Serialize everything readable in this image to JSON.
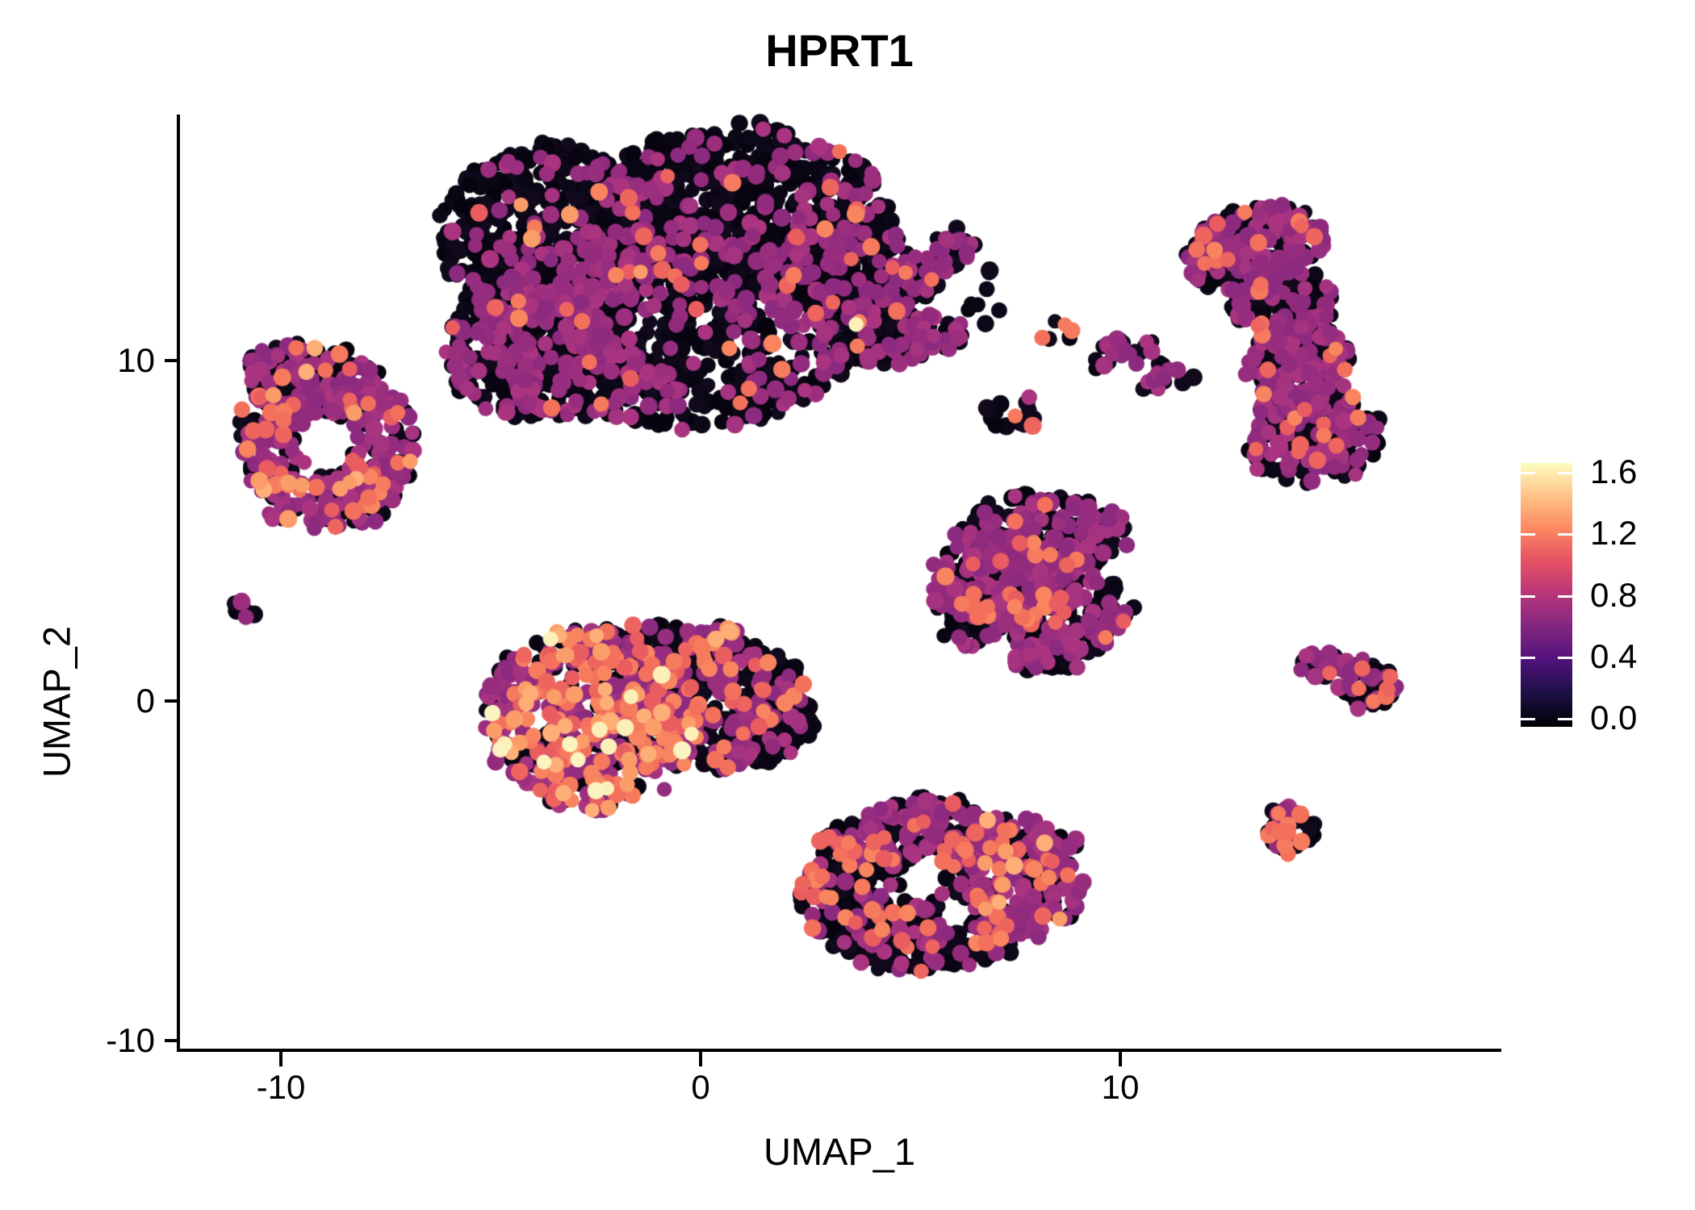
{
  "title": "HPRT1",
  "legend": {
    "tick_labels": [
      "1.6",
      "1.2",
      "0.8",
      "0.4",
      "0.0"
    ],
    "tick_values": [
      1.6,
      1.2,
      0.8,
      0.4,
      0.0
    ]
  },
  "chart_data": {
    "type": "scatter",
    "title": "HPRT1",
    "xlabel": "UMAP_1",
    "ylabel": "UMAP_2",
    "xlim": [
      -12.4,
      19.1
    ],
    "ylim": [
      -10.3,
      17.3
    ],
    "x_ticks": [
      -10,
      0,
      10
    ],
    "y_ticks": [
      -10,
      0,
      10
    ],
    "x_tick_labels": [
      "-10",
      "0",
      "10"
    ],
    "y_tick_labels": [
      "10",
      "0",
      "-10"
    ],
    "grid": false,
    "legend_position": "right",
    "colorbar": {
      "min": 0.0,
      "max": 1.6,
      "tick_values": [
        0.0,
        0.4,
        0.8,
        1.2,
        1.6
      ],
      "palette": "magma",
      "stops": [
        "#000004",
        "#1C1044",
        "#4F127B",
        "#812581",
        "#B5367A",
        "#E55064",
        "#FB8861",
        "#FEC287",
        "#FCFDBF"
      ]
    },
    "point_radius_px": 10,
    "expression_levels": {
      "black": 0.0,
      "purple": 0.75,
      "orange": 1.1,
      "peach": 1.35,
      "cream": 1.55
    },
    "point_colors": {
      "black": [
        "#0a0613",
        "#0d0818",
        "#100a1c",
        "#070410"
      ],
      "purple": [
        "#9c2e7e",
        "#932b7c",
        "#a43380",
        "#8c2a80",
        "#aa3480",
        "#962d7e"
      ],
      "orange": [
        "#f3705c",
        "#ed655e",
        "#f67b5e",
        "#e95d61",
        "#f8855f"
      ],
      "peach": [
        "#fb9d69",
        "#feae77"
      ],
      "cream": [
        "#fcf0b8",
        "#fbf3c0"
      ]
    },
    "clusters": [
      {
        "name": "top-center-main-1",
        "x": -3.42,
        "y": 13.74,
        "rx": 2.88,
        "ry": 2.61,
        "rot": 0,
        "n": 500,
        "mix": {
          "purple": 0.16,
          "orange": 0.015,
          "peach": 0.005
        }
      },
      {
        "name": "top-center-main-2",
        "x": 1.0,
        "y": 14.45,
        "rx": 3.46,
        "ry": 2.49,
        "rot": 0,
        "n": 600,
        "mix": {
          "purple": 0.13,
          "orange": 0.02
        }
      },
      {
        "name": "top-center-main-3",
        "x": -0.54,
        "y": 11.13,
        "rx": 4.42,
        "ry": 3.1,
        "rot": 0,
        "n": 780,
        "mix": {
          "purple": 0.27,
          "orange": 0.025,
          "cream": 0.003
        }
      },
      {
        "name": "top-center-main-4",
        "x": -4.0,
        "y": 10.41,
        "rx": 2.12,
        "ry": 2.14,
        "rot": 0,
        "n": 330,
        "mix": {
          "purple": 0.33,
          "orange": 0.03
        }
      },
      {
        "name": "top-center-main-5",
        "x": 3.4,
        "y": 12.79,
        "rx": 1.63,
        "ry": 1.78,
        "rot": 0,
        "n": 220,
        "mix": {
          "purple": 0.2,
          "orange": 0.02
        }
      },
      {
        "name": "top-center-arm-upper",
        "x": 5.04,
        "y": 12.31,
        "rx": 1.5,
        "ry": 0.55,
        "rot": -35,
        "n": 110,
        "mix": {
          "purple": 0.36,
          "orange": 0.04
        }
      },
      {
        "name": "top-center-arm-lower",
        "x": 4.85,
        "y": 10.65,
        "rx": 1.5,
        "ry": 0.6,
        "rot": -8,
        "n": 110,
        "mix": {
          "purple": 0.36,
          "orange": 0.02
        }
      },
      {
        "name": "top-center-arm-tip",
        "x": 6.1,
        "y": 13.38,
        "rx": 0.5,
        "ry": 0.5,
        "rot": 0,
        "n": 25,
        "mix": {
          "purple": 0.25
        }
      },
      {
        "name": "top-center-scatter",
        "x": 6.77,
        "y": 11.84,
        "rx": 0.55,
        "ry": 0.9,
        "rot": 0,
        "n": 8,
        "mix": {}
      },
      {
        "name": "left-ring-top",
        "x": -9.19,
        "y": 9.47,
        "rx": 1.63,
        "ry": 1.0,
        "rot": 8,
        "n": 150,
        "mix": {
          "purple": 0.49,
          "orange": 0.075,
          "peach": 0.015
        }
      },
      {
        "name": "left-ring-left",
        "x": -10.15,
        "y": 7.69,
        "rx": 0.87,
        "ry": 1.66,
        "rot": 0,
        "n": 110,
        "mix": {
          "purple": 0.49,
          "orange": 0.075,
          "peach": 0.015
        }
      },
      {
        "name": "left-ring-right",
        "x": -7.81,
        "y": 7.62,
        "rx": 1.06,
        "ry": 1.78,
        "rot": 0,
        "n": 150,
        "mix": {
          "purple": 0.49,
          "orange": 0.075,
          "peach": 0.015
        }
      },
      {
        "name": "left-ring-bottom",
        "x": -8.96,
        "y": 5.86,
        "rx": 1.44,
        "ry": 0.83,
        "rot": 0,
        "n": 110,
        "mix": {
          "purple": 0.49,
          "orange": 0.075,
          "peach": 0.015
        }
      },
      {
        "name": "left-ring-inner",
        "x": -9.1,
        "y": 8.28,
        "rx": 0.7,
        "ry": 0.55,
        "rot": 0,
        "n": 20,
        "mix": {
          "purple": 0.5
        }
      },
      {
        "name": "tiny-far-left",
        "x": -10.83,
        "y": 2.78,
        "rx": 0.28,
        "ry": 0.3,
        "rot": 0,
        "n": 6,
        "mix": {
          "purple": 0.5
        }
      },
      {
        "name": "center-left-core",
        "x": -2.65,
        "y": -0.5,
        "rx": 2.6,
        "ry": 2.66,
        "rot": 0,
        "n": 520,
        "mix": {
          "purple": 0.4,
          "orange": 0.24,
          "peach": 0.06,
          "cream": 0.02
        }
      },
      {
        "name": "center-left-right",
        "x": 0.38,
        "y": -0.07,
        "rx": 2.21,
        "ry": 1.9,
        "rot": 0,
        "n": 330,
        "mix": {
          "purple": 0.24,
          "orange": 0.08
        }
      },
      {
        "name": "center-left-tail",
        "x": 1.62,
        "y": -0.85,
        "rx": 1.1,
        "ry": 0.85,
        "rot": -15,
        "n": 90,
        "mix": {
          "purple": 0.2,
          "orange": 0.05
        }
      },
      {
        "name": "center-left-spur",
        "x": 0.48,
        "y": 1.49,
        "rx": 0.42,
        "ry": 0.85,
        "rot": 20,
        "n": 30,
        "mix": {
          "purple": 0.3,
          "orange": 0.3,
          "peach": 0.05
        }
      },
      {
        "name": "center-left-topedge",
        "x": -1.31,
        "y": 1.64,
        "rx": 1.9,
        "ry": 0.6,
        "rot": 0,
        "n": 90,
        "mix": {
          "purple": 0.3,
          "orange": 0.1
        }
      },
      {
        "name": "mid-right-tri-1",
        "x": 8.12,
        "y": 4.91,
        "rx": 2.12,
        "ry": 1.19,
        "rot": 0,
        "n": 200,
        "mix": {
          "purple": 0.46,
          "orange": 0.04
        }
      },
      {
        "name": "mid-right-tri-2",
        "x": 7.25,
        "y": 3.49,
        "rx": 1.73,
        "ry": 1.3,
        "rot": 0,
        "n": 170,
        "mix": {
          "purple": 0.46,
          "orange": 0.04
        }
      },
      {
        "name": "mid-right-tri-3",
        "x": 8.65,
        "y": 2.54,
        "rx": 1.63,
        "ry": 1.19,
        "rot": 0,
        "n": 160,
        "mix": {
          "purple": 0.46,
          "orange": 0.04
        }
      },
      {
        "name": "mid-right-tri-4",
        "x": 6.38,
        "y": 2.63,
        "rx": 0.9,
        "ry": 1.0,
        "rot": 0,
        "n": 70,
        "mix": {
          "purple": 0.46,
          "orange": 0.04
        }
      },
      {
        "name": "mid-right-tri-5",
        "x": 8.31,
        "y": 1.28,
        "rx": 0.85,
        "ry": 0.45,
        "rot": 0,
        "n": 40,
        "mix": {
          "purple": 0.46,
          "orange": 0.04
        }
      },
      {
        "name": "bottom-ridge",
        "x": 5.08,
        "y": -3.87,
        "rx": 1.83,
        "ry": 0.95,
        "rot": -8,
        "n": 170,
        "mix": {
          "purple": 0.45,
          "orange": 0.1
        }
      },
      {
        "name": "bottom-right-lobe",
        "x": 7.38,
        "y": -5.2,
        "rx": 1.83,
        "ry": 1.78,
        "rot": 0,
        "n": 260,
        "mix": {
          "purple": 0.5,
          "orange": 0.12,
          "peach": 0.03
        }
      },
      {
        "name": "bottom-left-lobe",
        "x": 3.65,
        "y": -5.53,
        "rx": 1.35,
        "ry": 1.78,
        "rot": 0,
        "n": 170,
        "mix": {
          "purple": 0.18,
          "orange": 0.14
        }
      },
      {
        "name": "bottom-bottom",
        "x": 5.38,
        "y": -6.95,
        "rx": 2.12,
        "ry": 1.07,
        "rot": 0,
        "n": 180,
        "mix": {
          "purple": 0.22,
          "orange": 0.06
        }
      },
      {
        "name": "right-crescent-1",
        "x": 13.27,
        "y": 13.5,
        "rx": 1.63,
        "ry": 1.07,
        "rot": -12,
        "n": 170,
        "mix": {
          "purple": 0.43,
          "orange": 0.05
        }
      },
      {
        "name": "right-crescent-2",
        "x": 13.85,
        "y": 11.79,
        "rx": 1.35,
        "ry": 1.3,
        "rot": 15,
        "n": 160,
        "mix": {
          "purple": 0.43,
          "orange": 0.05
        }
      },
      {
        "name": "right-crescent-3",
        "x": 14.31,
        "y": 9.89,
        "rx": 1.25,
        "ry": 1.3,
        "rot": 0,
        "n": 150,
        "mix": {
          "purple": 0.43,
          "orange": 0.05
        }
      },
      {
        "name": "right-crescent-4",
        "x": 14.5,
        "y": 7.8,
        "rx": 1.73,
        "ry": 1.42,
        "rot": 0,
        "n": 200,
        "mix": {
          "purple": 0.43,
          "orange": 0.05
        }
      },
      {
        "name": "right-crescent-tip",
        "x": 12.19,
        "y": 12.98,
        "rx": 0.65,
        "ry": 0.75,
        "rot": 0,
        "n": 40,
        "mix": {
          "purple": 0.43,
          "orange": 0.05
        }
      },
      {
        "name": "streak-1",
        "x": 10.08,
        "y": 10.3,
        "rx": 0.9,
        "ry": 0.4,
        "rot": -18,
        "n": 26,
        "mix": {
          "purple": 0.5
        }
      },
      {
        "name": "streak-2",
        "x": 11.42,
        "y": 9.66,
        "rx": 1.05,
        "ry": 0.33,
        "rot": -14,
        "n": 30,
        "mix": {
          "purple": 0.45
        }
      },
      {
        "name": "tiny-mid",
        "x": 8.54,
        "y": 10.79,
        "rx": 0.35,
        "ry": 0.3,
        "rot": 0,
        "n": 7,
        "mix": {
          "orange": 0.28
        }
      },
      {
        "name": "small-mid",
        "x": 7.46,
        "y": 8.47,
        "rx": 0.73,
        "ry": 0.55,
        "rot": -18,
        "n": 14,
        "mix": {
          "purple": 0.15,
          "orange": 0.23
        }
      },
      {
        "name": "right-wedge-1",
        "x": 15.0,
        "y": 1.02,
        "rx": 0.77,
        "ry": 0.4,
        "rot": 10,
        "n": 40,
        "mix": {
          "purple": 0.37,
          "orange": 0.08
        }
      },
      {
        "name": "right-wedge-2",
        "x": 15.92,
        "y": 0.5,
        "rx": 0.69,
        "ry": 0.69,
        "rot": 0,
        "n": 55,
        "mix": {
          "purple": 0.37,
          "orange": 0.08
        }
      },
      {
        "name": "bottom-right-dot",
        "x": 14.08,
        "y": -3.77,
        "rx": 0.62,
        "ry": 0.69,
        "rot": 0,
        "n": 42,
        "mix": {
          "purple": 0.12,
          "orange": 0.33
        }
      }
    ],
    "holes": [
      {
        "x": -8.94,
        "y": 7.62,
        "rx": 0.69,
        "ry": 0.85
      },
      {
        "x": 5.27,
        "y": -5.29,
        "rx": 0.5,
        "ry": 0.62
      },
      {
        "x": 6.1,
        "y": -6.19,
        "rx": 0.38,
        "ry": 0.47
      },
      {
        "x": 12.1,
        "y": 10.53,
        "rx": 0.87,
        "ry": 1.07
      },
      {
        "x": 12.25,
        "y": 8.28,
        "rx": 1.06,
        "ry": 1.3
      }
    ]
  }
}
